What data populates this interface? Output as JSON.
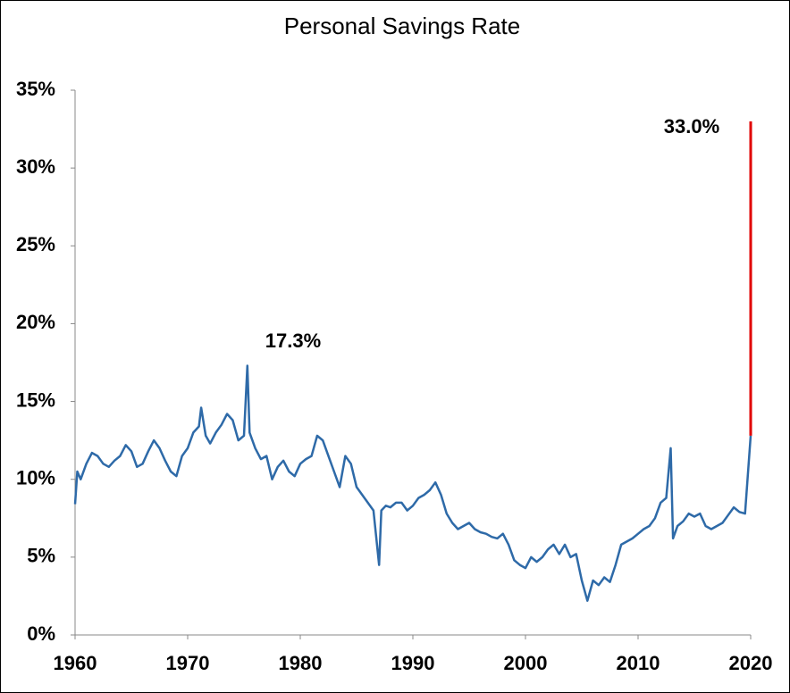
{
  "chart_data": {
    "type": "line",
    "title": "Personal Savings Rate",
    "xlim": [
      1960,
      2020
    ],
    "xticks": [
      1960,
      1970,
      1980,
      1990,
      2000,
      2010,
      2020
    ],
    "ylim": [
      0,
      35
    ],
    "yticks": [
      {
        "value": 0,
        "label": "0%"
      },
      {
        "value": 5,
        "label": "5%"
      },
      {
        "value": 10,
        "label": "10%"
      },
      {
        "value": 15,
        "label": "15%"
      },
      {
        "value": 20,
        "label": "20%"
      },
      {
        "value": 25,
        "label": "25%"
      },
      {
        "value": 30,
        "label": "30%"
      },
      {
        "value": 35,
        "label": "35%"
      }
    ],
    "annotations": [
      "17.3%",
      "33.0%"
    ],
    "series": [
      {
        "color": "#2e6aa8",
        "x": [
          1960,
          1960.2,
          1960.5,
          1961,
          1961.5,
          1962,
          1962.5,
          1963,
          1963.5,
          1964,
          1964.5,
          1965,
          1965.5,
          1966,
          1966.5,
          1967,
          1967.5,
          1968,
          1968.5,
          1969,
          1969.5,
          1970,
          1970.5,
          1971,
          1971.2,
          1971.6,
          1972,
          1972.5,
          1973,
          1973.5,
          1974,
          1974.5,
          1975,
          1975.3,
          1975.5,
          1976,
          1976.5,
          1977,
          1977.5,
          1978,
          1978.5,
          1979,
          1979.5,
          1980,
          1980.5,
          1981,
          1981.5,
          1982,
          1982.5,
          1983,
          1983.5,
          1984,
          1984.5,
          1985,
          1985.5,
          1986,
          1986.5,
          1987,
          1987.2,
          1987.6,
          1988,
          1988.5,
          1989,
          1989.5,
          1990,
          1990.5,
          1991,
          1991.5,
          1992,
          1992.5,
          1993,
          1993.5,
          1994,
          1994.5,
          1995,
          1995.5,
          1996,
          1996.5,
          1997,
          1997.5,
          1998,
          1998.5,
          1999,
          1999.5,
          2000,
          2000.5,
          2001,
          2001.5,
          2002,
          2002.5,
          2003,
          2003.5,
          2004,
          2004.5,
          2005,
          2005.5,
          2006,
          2006.5,
          2007,
          2007.5,
          2008,
          2008.5,
          2009,
          2009.5,
          2010,
          2010.5,
          2011,
          2011.5,
          2012,
          2012.5,
          2012.9,
          2013.1,
          2013.5,
          2014,
          2014.5,
          2015,
          2015.5,
          2016,
          2016.5,
          2017,
          2017.5,
          2018,
          2018.5,
          2019,
          2019.5,
          2020
        ],
        "values": [
          8.4,
          10.5,
          10,
          11,
          11.7,
          11.5,
          11,
          10.8,
          11.2,
          11.5,
          12.2,
          11.8,
          10.8,
          11,
          11.8,
          12.5,
          12,
          11.2,
          10.5,
          10.2,
          11.5,
          12,
          13,
          13.4,
          14.6,
          12.8,
          12.3,
          13,
          13.5,
          14.2,
          13.8,
          12.5,
          12.8,
          17.3,
          13,
          12,
          11.3,
          11.5,
          10,
          10.8,
          11.2,
          10.5,
          10.2,
          11,
          11.3,
          11.5,
          12.8,
          12.5,
          11.5,
          10.5,
          9.5,
          11.5,
          11,
          9.5,
          9,
          8.5,
          8,
          4.5,
          8,
          8.3,
          8.2,
          8.5,
          8.5,
          8,
          8.3,
          8.8,
          9,
          9.3,
          9.8,
          9,
          7.8,
          7.2,
          6.8,
          7,
          7.2,
          6.8,
          6.6,
          6.5,
          6.3,
          6.2,
          6.5,
          5.8,
          4.8,
          4.5,
          4.3,
          5,
          4.7,
          5,
          5.5,
          5.8,
          5.2,
          5.8,
          5,
          5.2,
          3.5,
          2.2,
          3.5,
          3.2,
          3.7,
          3.4,
          4.5,
          5.8,
          6,
          6.2,
          6.5,
          6.8,
          7,
          7.5,
          8.5,
          8.8,
          12,
          6.2,
          7,
          7.3,
          7.8,
          7.6,
          7.8,
          7,
          6.8,
          7,
          7.2,
          7.7,
          8.2,
          7.9,
          7.8,
          12.8
        ]
      },
      {
        "color": "#e00000",
        "x": [
          2020,
          2020
        ],
        "values": [
          12.8,
          33.0
        ]
      }
    ]
  }
}
